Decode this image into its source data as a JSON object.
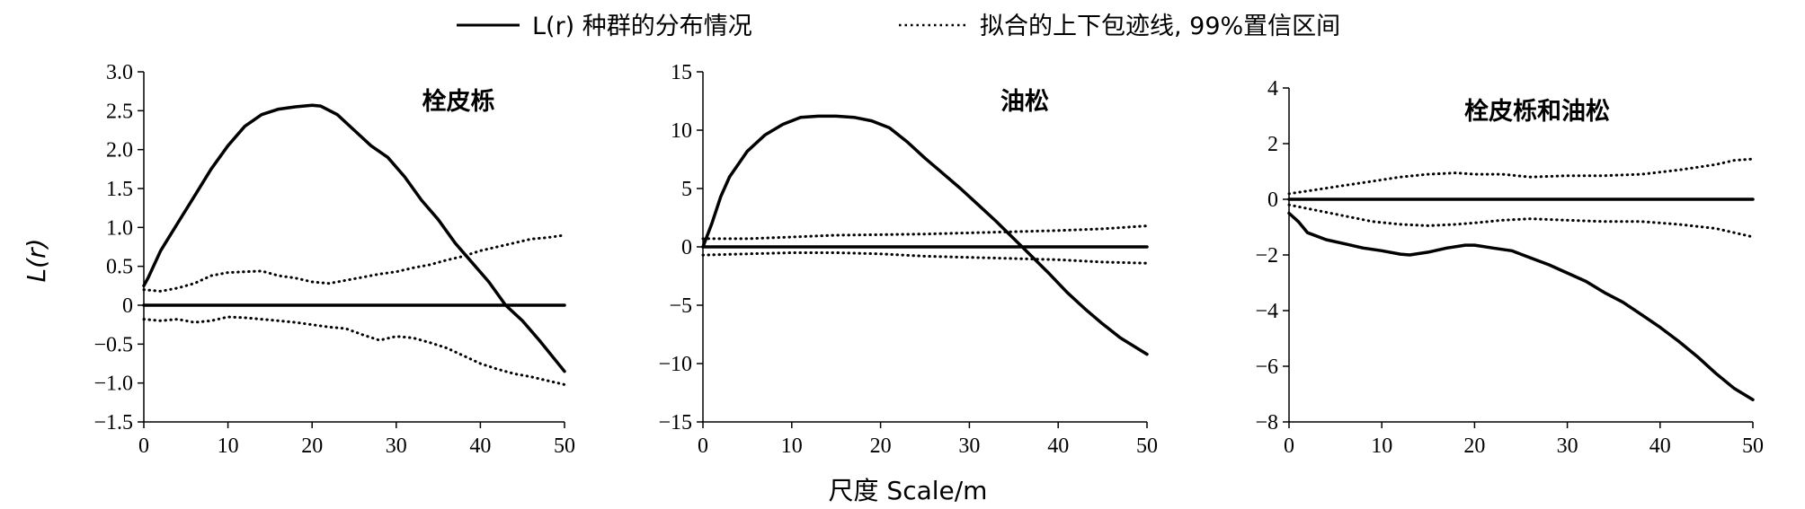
{
  "legend": {
    "solid_label": "L(r) 种群的分布情况",
    "dotted_label": "拟合的上下包迹线, 99%置信区间"
  },
  "xlabel": "尺度 Scale/m",
  "ylabel": "L(r)",
  "chart_data": [
    {
      "type": "line",
      "title": "栓皮栎",
      "xlim": [
        0,
        50
      ],
      "ylim": [
        -1.5,
        3.0
      ],
      "xticks": [
        0,
        10,
        20,
        30,
        40,
        50
      ],
      "yticks": [
        -1.5,
        -1.0,
        -0.5,
        0,
        0.5,
        1.0,
        1.5,
        2.0,
        2.5,
        3.0
      ],
      "ytick_labels": [
        "−1.5",
        "−1.0",
        "−0.5",
        "0",
        "0.5",
        "1.0",
        "1.5",
        "2.0",
        "2.5",
        "3.0"
      ],
      "series": [
        {
          "style": "solid",
          "x": [
            0,
            0.5,
            2,
            4,
            6,
            8,
            10,
            12,
            14,
            16,
            18,
            20,
            21,
            23,
            25,
            27,
            29,
            31,
            33,
            35,
            37,
            39,
            41,
            43,
            45,
            47,
            50
          ],
          "y": [
            0.25,
            0.35,
            0.7,
            1.05,
            1.4,
            1.75,
            2.05,
            2.3,
            2.45,
            2.52,
            2.55,
            2.57,
            2.56,
            2.45,
            2.25,
            2.05,
            1.9,
            1.65,
            1.35,
            1.1,
            0.8,
            0.55,
            0.3,
            0.0,
            -0.2,
            -0.45,
            -0.85
          ]
        },
        {
          "style": "dotted",
          "x": [
            0,
            2,
            4,
            6,
            8,
            10,
            12,
            14,
            16,
            18,
            20,
            22,
            24,
            26,
            28,
            30,
            32,
            34,
            36,
            38,
            40,
            42,
            44,
            46,
            48,
            50
          ],
          "y": [
            0.2,
            0.18,
            0.22,
            0.28,
            0.38,
            0.42,
            0.43,
            0.44,
            0.38,
            0.35,
            0.3,
            0.28,
            0.32,
            0.36,
            0.4,
            0.43,
            0.48,
            0.52,
            0.58,
            0.63,
            0.7,
            0.75,
            0.8,
            0.85,
            0.87,
            0.9
          ]
        },
        {
          "style": "dotted",
          "x": [
            0,
            2,
            4,
            6,
            8,
            10,
            12,
            14,
            16,
            18,
            20,
            22,
            24,
            26,
            28,
            30,
            32,
            34,
            36,
            38,
            40,
            42,
            44,
            46,
            48,
            50
          ],
          "y": [
            -0.18,
            -0.2,
            -0.18,
            -0.22,
            -0.2,
            -0.15,
            -0.16,
            -0.18,
            -0.2,
            -0.22,
            -0.25,
            -0.28,
            -0.3,
            -0.38,
            -0.45,
            -0.4,
            -0.42,
            -0.48,
            -0.55,
            -0.65,
            -0.75,
            -0.82,
            -0.88,
            -0.92,
            -0.97,
            -1.02
          ]
        },
        {
          "style": "zero",
          "x": [
            0,
            50
          ],
          "y": [
            0,
            0
          ]
        }
      ]
    },
    {
      "type": "line",
      "title": "油松",
      "xlim": [
        0,
        50
      ],
      "ylim": [
        -15,
        15
      ],
      "xticks": [
        0,
        10,
        20,
        30,
        40,
        50
      ],
      "yticks": [
        -15,
        -10,
        -5,
        0,
        5,
        10,
        15
      ],
      "ytick_labels": [
        "−15",
        "−10",
        "−5",
        "0",
        "5",
        "10",
        "15"
      ],
      "series": [
        {
          "style": "solid",
          "x": [
            0,
            1,
            2,
            3,
            5,
            7,
            9,
            11,
            13,
            15,
            17,
            19,
            21,
            23,
            25,
            27,
            29,
            31,
            33,
            35,
            37,
            39,
            41,
            43,
            45,
            47,
            50
          ],
          "y": [
            0,
            2,
            4.3,
            6,
            8.2,
            9.6,
            10.5,
            11.1,
            11.2,
            11.2,
            11.1,
            10.8,
            10.2,
            9.0,
            7.6,
            6.3,
            5.0,
            3.6,
            2.2,
            0.7,
            -0.8,
            -2.3,
            -3.9,
            -5.3,
            -6.6,
            -7.8,
            -9.2
          ]
        },
        {
          "style": "dotted",
          "x": [
            0,
            5,
            10,
            15,
            20,
            25,
            30,
            35,
            40,
            45,
            50
          ],
          "y": [
            0.7,
            0.7,
            0.85,
            1.0,
            1.05,
            1.1,
            1.2,
            1.3,
            1.4,
            1.55,
            1.8
          ]
        },
        {
          "style": "dotted",
          "x": [
            0,
            5,
            10,
            15,
            20,
            25,
            30,
            35,
            40,
            45,
            50
          ],
          "y": [
            -0.7,
            -0.6,
            -0.5,
            -0.5,
            -0.6,
            -0.8,
            -0.9,
            -1.0,
            -1.1,
            -1.3,
            -1.4
          ]
        },
        {
          "style": "zero",
          "x": [
            0,
            50
          ],
          "y": [
            0,
            0
          ]
        }
      ]
    },
    {
      "type": "line",
      "title": "栓皮栎和油松",
      "xlim": [
        0,
        50
      ],
      "ylim": [
        -8,
        4
      ],
      "xticks": [
        0,
        10,
        20,
        30,
        40,
        50
      ],
      "yticks": [
        -8,
        -6,
        -4,
        -2,
        0,
        2,
        4
      ],
      "ytick_labels": [
        "−8",
        "−6",
        "−4",
        "−2",
        "0",
        "2",
        "4"
      ],
      "series": [
        {
          "style": "solid",
          "x": [
            0,
            1,
            2,
            4,
            6,
            8,
            10,
            12,
            13,
            15,
            17,
            19,
            20,
            22,
            24,
            26,
            28,
            30,
            32,
            34,
            36,
            38,
            40,
            42,
            44,
            46,
            48,
            50
          ],
          "y": [
            -0.5,
            -0.8,
            -1.2,
            -1.45,
            -1.6,
            -1.75,
            -1.85,
            -1.97,
            -2.0,
            -1.9,
            -1.75,
            -1.65,
            -1.65,
            -1.75,
            -1.85,
            -2.1,
            -2.35,
            -2.65,
            -2.95,
            -3.35,
            -3.7,
            -4.15,
            -4.6,
            -5.1,
            -5.65,
            -6.25,
            -6.8,
            -7.2
          ]
        },
        {
          "style": "dotted",
          "x": [
            0,
            3,
            6,
            9,
            12,
            15,
            18,
            20,
            23,
            26,
            30,
            34,
            38,
            42,
            46,
            48,
            50
          ],
          "y": [
            0.2,
            0.35,
            0.5,
            0.65,
            0.8,
            0.9,
            0.95,
            0.9,
            0.9,
            0.8,
            0.85,
            0.85,
            0.9,
            1.05,
            1.25,
            1.4,
            1.45
          ]
        },
        {
          "style": "dotted",
          "x": [
            0,
            3,
            6,
            9,
            12,
            15,
            18,
            20,
            23,
            26,
            30,
            34,
            38,
            42,
            46,
            48,
            50
          ],
          "y": [
            -0.2,
            -0.4,
            -0.6,
            -0.8,
            -0.9,
            -0.95,
            -0.9,
            -0.85,
            -0.75,
            -0.7,
            -0.75,
            -0.8,
            -0.8,
            -0.9,
            -1.05,
            -1.2,
            -1.35
          ]
        },
        {
          "style": "zero",
          "x": [
            0,
            50
          ],
          "y": [
            0,
            0
          ]
        }
      ]
    }
  ]
}
